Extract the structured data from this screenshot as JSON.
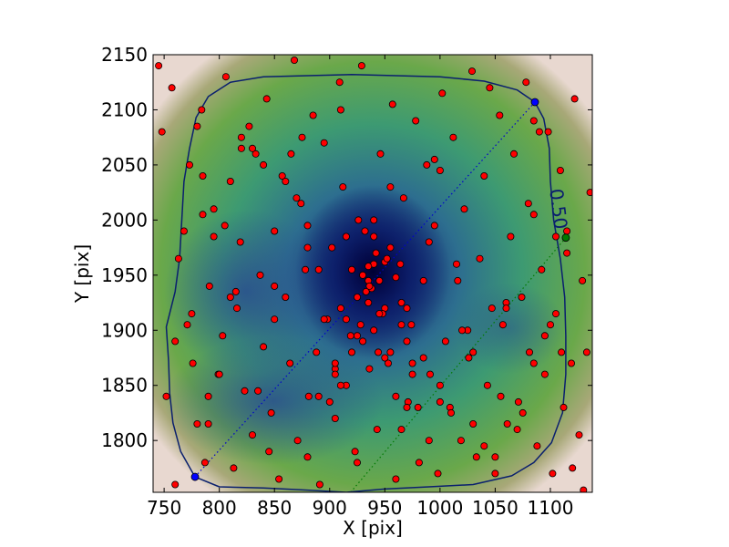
{
  "chart_data": {
    "type": "scatter",
    "title": "",
    "xlabel": "X [pix]",
    "ylabel": "Y [pix]",
    "xlim": [
      740,
      1138
    ],
    "ylim": [
      1753,
      2150
    ],
    "xticks": [
      750,
      800,
      850,
      900,
      950,
      1000,
      1050,
      1100
    ],
    "yticks": [
      1800,
      1850,
      1900,
      1950,
      2000,
      2050,
      2100,
      2150
    ],
    "grid": false,
    "background": "density map (white/pink edges, green, teal, dark navy core)",
    "center": [
      940,
      1952
    ],
    "contour": {
      "level_label": "0.50",
      "color": "#0a1f6e",
      "points": [
        [
          752,
          1903
        ],
        [
          754,
          1872
        ],
        [
          755,
          1843
        ],
        [
          758,
          1816
        ],
        [
          765,
          1790
        ],
        [
          778,
          1767
        ],
        [
          800,
          1758
        ],
        [
          840,
          1757
        ],
        [
          880,
          1755
        ],
        [
          915,
          1753
        ],
        [
          950,
          1756
        ],
        [
          990,
          1758
        ],
        [
          1030,
          1760
        ],
        [
          1065,
          1768
        ],
        [
          1085,
          1780
        ],
        [
          1101,
          1798
        ],
        [
          1111,
          1825
        ],
        [
          1114,
          1860
        ],
        [
          1114,
          1895
        ],
        [
          1113,
          1930
        ],
        [
          1109,
          1965
        ],
        [
          1103,
          2000
        ],
        [
          1100,
          2035
        ],
        [
          1099,
          2065
        ],
        [
          1094,
          2092
        ],
        [
          1086,
          2107
        ],
        [
          1070,
          2118
        ],
        [
          1040,
          2126
        ],
        [
          1000,
          2130
        ],
        [
          960,
          2131
        ],
        [
          920,
          2132
        ],
        [
          880,
          2131
        ],
        [
          840,
          2130
        ],
        [
          810,
          2125
        ],
        [
          790,
          2112
        ],
        [
          779,
          2093
        ],
        [
          773,
          2065
        ],
        [
          768,
          2035
        ],
        [
          766,
          2000
        ],
        [
          764,
          1965
        ],
        [
          760,
          1935
        ]
      ]
    },
    "markers": [
      {
        "name": "blue-start",
        "x": 778,
        "y": 1767,
        "color": "#0000ff"
      },
      {
        "name": "blue-end",
        "x": 1086,
        "y": 2107,
        "color": "#0000ff"
      },
      {
        "name": "green",
        "x": 1114,
        "y": 1984,
        "color": "#007a00"
      }
    ],
    "lines": [
      {
        "name": "diagonal-blue",
        "from": [
          778,
          1767
        ],
        "to": [
          1086,
          2107
        ],
        "style": "dotted",
        "color": "#0000cc"
      },
      {
        "name": "diagonal-green",
        "from": [
          919,
          1753
        ],
        "to": [
          1114,
          1984
        ],
        "style": "dotted",
        "color": "#007a00"
      }
    ],
    "point_color": "#ff0000",
    "points": {
      "x": [
        745,
        748,
        752,
        757,
        760,
        763,
        768,
        771,
        773,
        776,
        780,
        784,
        787,
        791,
        795,
        799,
        803,
        806,
        810,
        813,
        816,
        819,
        823,
        827,
        830,
        833,
        837,
        840,
        843,
        847,
        850,
        854,
        857,
        860,
        864,
        868,
        871,
        874,
        878,
        881,
        885,
        888,
        891,
        895,
        898,
        902,
        905,
        909,
        912,
        915,
        919,
        923,
        926,
        929,
        933,
        936,
        940,
        943,
        946,
        950,
        953,
        957,
        960,
        964,
        967,
        971,
        974,
        978,
        981,
        985,
        988,
        991,
        995,
        998,
        1002,
        1005,
        1009,
        1012,
        1016,
        1019,
        1022,
        1026,
        1029,
        1033,
        1036,
        1040,
        1043,
        1047,
        1050,
        1054,
        1057,
        1061,
        1064,
        1067,
        1071,
        1074,
        1078,
        1081,
        1085,
        1088,
        1092,
        1095,
        1098,
        1102,
        1105,
        1109,
        1112,
        1115,
        1119,
        1122,
        1126,
        1129,
        1133,
        1136,
        760,
        790,
        820,
        850,
        880,
        910,
        940,
        970,
        1000,
        1030,
        1060,
        1090,
        1120,
        775,
        805,
        835,
        865,
        895,
        925,
        955,
        985,
        1015,
        1045,
        1075,
        1105,
        1130,
        785,
        815,
        845,
        875,
        905,
        935,
        965,
        995,
        1025,
        1055,
        1085,
        1115,
        930,
        935,
        945,
        950,
        938,
        942,
        925,
        955,
        920,
        960,
        915,
        965,
        932,
        948,
        940,
        928,
        952,
        936,
        944,
        905,
        975,
        910,
        970,
        890,
        990,
        880,
        1000,
        870,
        1010,
        860,
        1020,
        850,
        1030,
        840,
        1040,
        830,
        1050,
        820,
        1060,
        810,
        1070,
        800,
        1080,
        795,
        1085,
        790,
        1095,
        785,
        1100,
        780,
        1110,
        900,
        980,
        910,
        970,
        920,
        960,
        890,
        990,
        880,
        1000,
        930,
        950,
        940,
        945,
        935,
        925,
        955,
        915,
        965,
        905,
        975
      ],
      "y": [
        2140,
        2080,
        1840,
        2120,
        1760,
        1965,
        1990,
        1905,
        2050,
        1870,
        1815,
        2100,
        1780,
        1940,
        2010,
        1860,
        1895,
        2130,
        2035,
        1775,
        1920,
        1980,
        1845,
        2085,
        1805,
        2060,
        1950,
        1885,
        2110,
        1825,
        1990,
        1765,
        2040,
        1930,
        1870,
        2145,
        1800,
        2015,
        1955,
        1840,
        2095,
        1880,
        1760,
        2070,
        1910,
        1975,
        1820,
        2125,
        2030,
        1850,
        1895,
        1790,
        2000,
        2140,
        1935,
        1865,
        1985,
        1810,
        2060,
        1920,
        1870,
        2105,
        1765,
        1960,
        2020,
        1835,
        1905,
        2090,
        1780,
        1945,
        2050,
        1860,
        1995,
        1770,
        2115,
        1890,
        1830,
        2075,
        1945,
        1800,
        2010,
        1875,
        2135,
        1785,
        1965,
        2040,
        1850,
        1920,
        1770,
        2095,
        1905,
        1815,
        1985,
        2060,
        1835,
        1930,
        2125,
        1880,
        2005,
        1795,
        1955,
        1860,
        2080,
        1770,
        1915,
        2045,
        1830,
        1990,
        1870,
        2110,
        1805,
        1945,
        1880,
        2025,
        1890,
        1815,
        2065,
        1940,
        1785,
        2100,
        1960,
        1830,
        2045,
        1880,
        1925,
        2080,
        1775,
        1915,
        1995,
        1845,
        2060,
        1910,
        1780,
        2030,
        1875,
        1960,
        2120,
        1825,
        1985,
        1755,
        2005,
        1935,
        1790,
        2075,
        1865,
        1945,
        1810,
        2055,
        1900,
        1840,
        2090,
        1970,
        1950,
        1958,
        1945,
        1962,
        1938,
        1970,
        1930,
        1975,
        1955,
        1948,
        1985,
        1925,
        1990,
        1915,
        2000,
        1905,
        1965,
        1940,
        1880,
        1860,
        1870,
        1850,
        1890,
        1840,
        1980,
        1995,
        1835,
        2020,
        1825,
        2035,
        1900,
        1910,
        1815,
        2050,
        1795,
        2065,
        1785,
        2075,
        1920,
        1930,
        1810,
        1860,
        2015,
        1985,
        1870,
        1840,
        1895,
        2040,
        1905,
        2085,
        1880,
        1835,
        1830,
        1920,
        1920,
        1880,
        1840,
        1955,
        1800,
        1975,
        1850,
        1890,
        1875,
        1900,
        1915,
        1925,
        1895,
        1880,
        1910,
        1905,
        1870,
        1860
      ]
    }
  }
}
